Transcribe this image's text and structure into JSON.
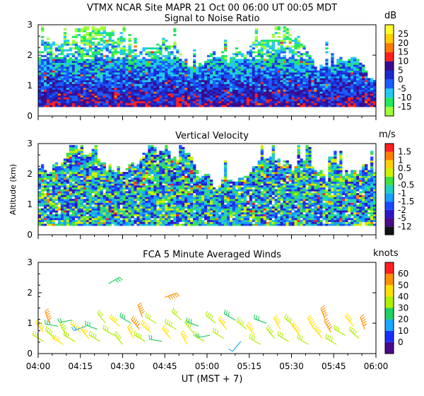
{
  "header": {
    "title": "VTMX  NCAR Site  MAPR 21 Oct 00  06:00 UT  00:05  MDT"
  },
  "x_axis": {
    "ticks": [
      "04:00",
      "04:15",
      "04:30",
      "04:45",
      "05:00",
      "05:15",
      "05:30",
      "05:45",
      "06:00"
    ],
    "label": "UT  (MST + 7)",
    "range": [
      0,
      120
    ]
  },
  "chart_data": [
    {
      "type": "heatmap",
      "title": "Signal to Noise Ratio",
      "unit": "dB",
      "ylabel": "",
      "ylim": [
        0,
        3
      ],
      "y_ticks": [
        "0",
        "1",
        "2",
        "3"
      ],
      "legend_labels": [
        "25",
        "20",
        "15",
        "10",
        "5",
        "0",
        "-5",
        "-10",
        "-15"
      ],
      "palette": [
        "#a0ff3a",
        "#22e860",
        "#22c8f0",
        "#1a5cff",
        "#1a2ad0",
        "#3a0a8a",
        "#ff2020",
        "#ff7a00",
        "#ffd000",
        "#ffff30"
      ],
      "levels": [
        -15,
        -10,
        -5,
        0,
        5,
        10,
        15,
        20,
        25
      ],
      "series_seed": 11
    },
    {
      "type": "heatmap",
      "title": "Vertical Velocity",
      "unit": "m/s",
      "ylabel": "Altitude (km)",
      "ylim": [
        0,
        3
      ],
      "y_ticks": [
        "0",
        "1",
        "2",
        "3"
      ],
      "legend_labels": [
        "1.5",
        "1",
        "0.5",
        "0",
        "-0.5",
        "-1",
        "-1.5",
        "-2",
        "-5",
        "-12"
      ],
      "palette": [
        "#111111",
        "#4a0a8a",
        "#2a18c8",
        "#1a48ff",
        "#18a0ff",
        "#20d0c0",
        "#40e040",
        "#d0f000",
        "#ffd000",
        "#ff8000",
        "#ff2020"
      ],
      "levels": [
        -12,
        -5,
        -2,
        -1.5,
        -1,
        -0.5,
        0,
        0.5,
        1,
        1.5
      ],
      "series_seed": 29
    },
    {
      "type": "scatter",
      "title": "FCA 5 Minute Averaged Winds",
      "unit": "knots",
      "ylabel": "",
      "ylim": [
        0,
        3
      ],
      "y_ticks": [
        "0",
        "1",
        "2",
        "3"
      ],
      "legend_labels": [
        "60",
        "50",
        "40",
        "30",
        "20",
        "10",
        "0"
      ],
      "palette": [
        "#4a0a8a",
        "#1a30ff",
        "#18a8ff",
        "#20d060",
        "#b0f000",
        "#ffe000",
        "#ff9000",
        "#ff2020"
      ],
      "levels": [
        0,
        10,
        20,
        30,
        40,
        50,
        60
      ],
      "barbs": [
        {
          "t": 2,
          "z": 0.4,
          "spd": 30,
          "dir": 300
        },
        {
          "t": 2,
          "z": 0.7,
          "spd": 45,
          "dir": 320
        },
        {
          "t": 4,
          "z": 1.0,
          "spd": 55,
          "dir": 340
        },
        {
          "t": 6,
          "z": 0.5,
          "spd": 38,
          "dir": 310
        },
        {
          "t": 7,
          "z": 0.9,
          "spd": 25,
          "dir": 280
        },
        {
          "t": 9,
          "z": 0.3,
          "spd": 42,
          "dir": 300
        },
        {
          "t": 10,
          "z": 0.6,
          "spd": 35,
          "dir": 330
        },
        {
          "t": 12,
          "z": 1.1,
          "spd": 20,
          "dir": 260
        },
        {
          "t": 13,
          "z": 0.4,
          "spd": 30,
          "dir": 300
        },
        {
          "t": 15,
          "z": 0.7,
          "spd": 45,
          "dir": 310
        },
        {
          "t": 17,
          "z": 0.9,
          "spd": 18,
          "dir": 250
        },
        {
          "t": 18,
          "z": 0.5,
          "spd": 40,
          "dir": 320
        },
        {
          "t": 21,
          "z": 0.8,
          "spd": 26,
          "dir": 290
        },
        {
          "t": 22,
          "z": 0.4,
          "spd": 35,
          "dir": 300
        },
        {
          "t": 24,
          "z": 1.0,
          "spd": 30,
          "dir": 320
        },
        {
          "t": 25,
          "z": 2.3,
          "spd": 28,
          "dir": 60
        },
        {
          "t": 27,
          "z": 0.6,
          "spd": 33,
          "dir": 300
        },
        {
          "t": 29,
          "z": 0.9,
          "spd": 40,
          "dir": 310
        },
        {
          "t": 30,
          "z": 0.3,
          "spd": 36,
          "dir": 320
        },
        {
          "t": 33,
          "z": 1.0,
          "spd": 28,
          "dir": 300
        },
        {
          "t": 34,
          "z": 0.5,
          "spd": 42,
          "dir": 330
        },
        {
          "t": 36,
          "z": 0.8,
          "spd": 50,
          "dir": 320
        },
        {
          "t": 37,
          "z": 1.2,
          "spd": 55,
          "dir": 340
        },
        {
          "t": 38,
          "z": 0.4,
          "spd": 38,
          "dir": 300
        },
        {
          "t": 40,
          "z": 0.7,
          "spd": 45,
          "dir": 310
        },
        {
          "t": 42,
          "z": 1.0,
          "spd": 32,
          "dir": 300
        },
        {
          "t": 44,
          "z": 0.4,
          "spd": 24,
          "dir": 280
        },
        {
          "t": 45,
          "z": 1.85,
          "spd": 55,
          "dir": 70
        },
        {
          "t": 47,
          "z": 0.5,
          "spd": 40,
          "dir": 320
        },
        {
          "t": 49,
          "z": 0.8,
          "spd": 36,
          "dir": 300
        },
        {
          "t": 51,
          "z": 1.1,
          "spd": 30,
          "dir": 310
        },
        {
          "t": 53,
          "z": 0.3,
          "spd": 42,
          "dir": 330
        },
        {
          "t": 55,
          "z": 0.7,
          "spd": 38,
          "dir": 320
        },
        {
          "t": 57,
          "z": 0.9,
          "spd": 25,
          "dir": 290
        },
        {
          "t": 59,
          "z": 0.4,
          "spd": 34,
          "dir": 300
        },
        {
          "t": 61,
          "z": 0.6,
          "spd": 20,
          "dir": 260
        },
        {
          "t": 63,
          "z": 1.0,
          "spd": 36,
          "dir": 310
        },
        {
          "t": 66,
          "z": 0.5,
          "spd": 30,
          "dir": 300
        },
        {
          "t": 67,
          "z": 0.8,
          "spd": 40,
          "dir": 320
        },
        {
          "t": 70,
          "z": 1.1,
          "spd": 28,
          "dir": 300
        },
        {
          "t": 72,
          "z": 0.4,
          "spd": 12,
          "dir": 220
        },
        {
          "t": 74,
          "z": 0.8,
          "spd": 35,
          "dir": 310
        },
        {
          "t": 77,
          "z": 0.6,
          "spd": 40,
          "dir": 320
        },
        {
          "t": 79,
          "z": 0.3,
          "spd": 30,
          "dir": 300
        },
        {
          "t": 81,
          "z": 1.0,
          "spd": 26,
          "dir": 290
        },
        {
          "t": 84,
          "z": 0.5,
          "spd": 38,
          "dir": 320
        },
        {
          "t": 86,
          "z": 0.8,
          "spd": 42,
          "dir": 330
        },
        {
          "t": 89,
          "z": 0.4,
          "spd": 34,
          "dir": 300
        },
        {
          "t": 91,
          "z": 0.9,
          "spd": 36,
          "dir": 310
        },
        {
          "t": 93,
          "z": 0.6,
          "spd": 45,
          "dir": 320
        },
        {
          "t": 96,
          "z": 0.3,
          "spd": 30,
          "dir": 300
        },
        {
          "t": 98,
          "z": 0.8,
          "spd": 48,
          "dir": 330
        },
        {
          "t": 101,
          "z": 0.5,
          "spd": 40,
          "dir": 320
        },
        {
          "t": 102,
          "z": 1.1,
          "spd": 58,
          "dir": 340
        },
        {
          "t": 104,
          "z": 0.7,
          "spd": 50,
          "dir": 330
        },
        {
          "t": 106,
          "z": 0.3,
          "spd": 38,
          "dir": 300
        },
        {
          "t": 109,
          "z": 0.6,
          "spd": 30,
          "dir": 300
        },
        {
          "t": 112,
          "z": 0.9,
          "spd": 44,
          "dir": 320
        },
        {
          "t": 114,
          "z": 0.5,
          "spd": 36,
          "dir": 310
        },
        {
          "t": 116,
          "z": 0.8,
          "spd": 52,
          "dir": 340
        }
      ]
    }
  ]
}
